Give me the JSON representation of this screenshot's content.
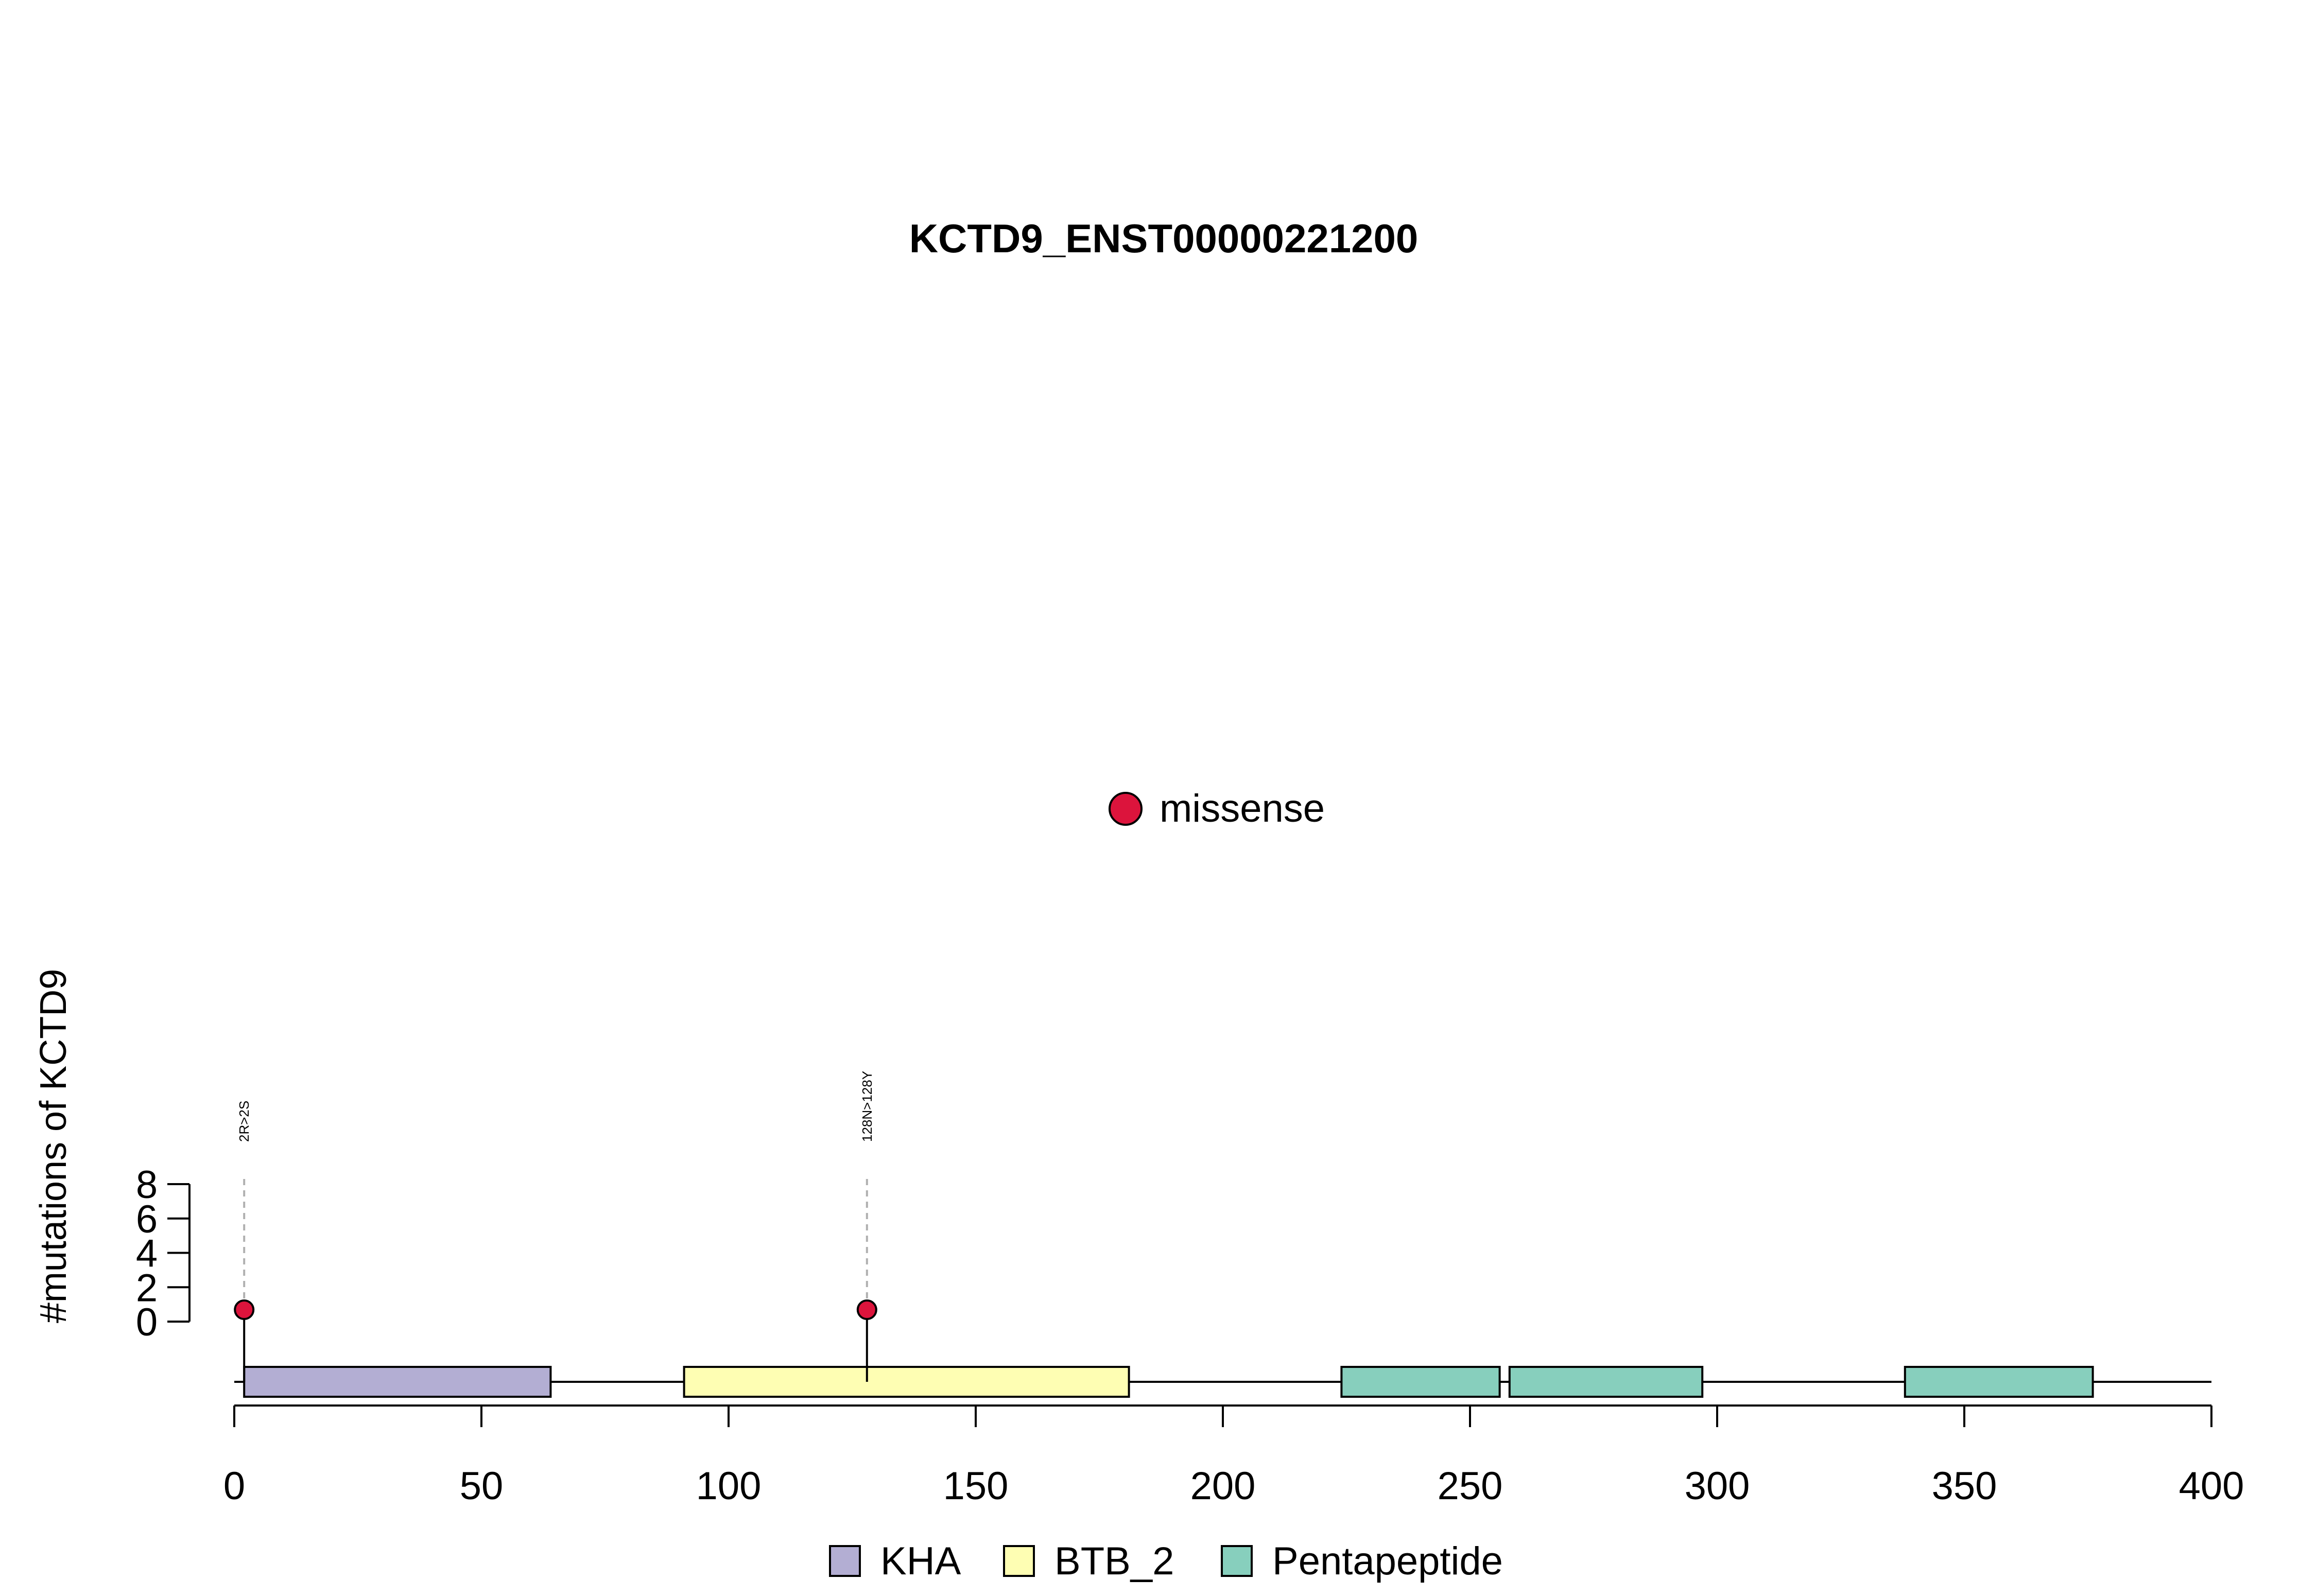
{
  "chart_data": {
    "type": "lollipop",
    "title": "KCTD9_ENST00000221200",
    "ylabel": "#mutations of KCTD9",
    "xlim": [
      0,
      400
    ],
    "x_ticks": [
      0,
      50,
      100,
      150,
      200,
      250,
      300,
      350,
      400
    ],
    "y_ticks": [
      0,
      2,
      4,
      6,
      8
    ],
    "ylim": [
      0,
      8
    ],
    "protein_length": 400,
    "mutations": [
      {
        "position": 2,
        "label": "2R>2S",
        "count": 1,
        "type": "missense"
      },
      {
        "position": 128,
        "label": "128N>128Y",
        "count": 1,
        "type": "missense"
      }
    ],
    "domains": [
      {
        "name": "KHA",
        "start": 2,
        "end": 64,
        "color": "#b3aed3"
      },
      {
        "name": "BTB_2",
        "start": 91,
        "end": 181,
        "color": "#fefeb3"
      },
      {
        "name": "Pentapeptide",
        "start": 224,
        "end": 256,
        "color": "#87cfbd"
      },
      {
        "name": "Pentapeptide",
        "start": 258,
        "end": 297,
        "color": "#87cfbd"
      },
      {
        "name": "Pentapeptide",
        "start": 338,
        "end": 376,
        "color": "#87cfbd"
      }
    ],
    "mutation_legend": [
      {
        "name": "missense",
        "color": "#dc143c"
      }
    ],
    "domain_legend": [
      {
        "name": "KHA",
        "color": "#b3aed3"
      },
      {
        "name": "BTB_2",
        "color": "#fefeb3"
      },
      {
        "name": "Pentapeptide",
        "color": "#87cfbd"
      }
    ]
  }
}
